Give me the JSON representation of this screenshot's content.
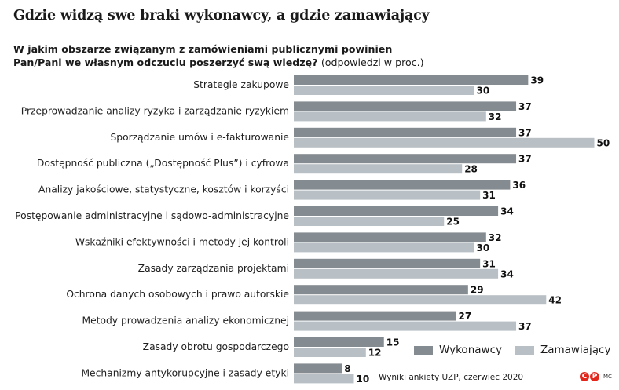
{
  "header": {
    "title": "Gdzie widzą swe braki wykonawcy, a gdzie zamawiający",
    "subtitle_bold_1": "W jakim obszarze związanym z zamówieniami publicznymi powinien",
    "subtitle_bold_2": "Pan/Pani we własnym odczuciu poszerzyć swą wiedzę?",
    "subtitle_note": "(odpowiedzi w proc.)"
  },
  "legend": {
    "series_1": "Wykonawcy",
    "series_2": "Zamawiający"
  },
  "footer": {
    "source": "Wyniki ankiety UZP, czerwiec 2020",
    "logo_c": "C",
    "logo_p": "P",
    "credit": "MC"
  },
  "colors": {
    "series_1": "#858c91",
    "series_2": "#b8c0c5",
    "logo": "#e3271d"
  },
  "chart_data": {
    "type": "bar",
    "orientation": "horizontal",
    "title": "Gdzie widzą swe braki wykonawcy, a gdzie zamawiający",
    "categories": [
      "Strategie zakupowe",
      "Przeprowadzanie analizy ryzyka i zarządzanie ryzykiem",
      "Sporządzanie umów i e-fakturowanie",
      "Dostępność publiczna („Dostępność Plus”) i cyfrowa",
      "Analizy jakościowe, statystyczne, kosztów i korzyści",
      "Postępowanie administracyjne i sądowo-administracyjne",
      "Wskaźniki efektywności i metody jej kontroli",
      "Zasady zarządzania projektami",
      "Ochrona danych osobowych i prawo autorskie",
      "Metody prowadzenia analizy ekonomicznej",
      "Zasady obrotu gospodarczego",
      "Mechanizmy antykorupcyjne i zasady etyki"
    ],
    "series": [
      {
        "name": "Wykonawcy",
        "values": [
          39,
          37,
          37,
          37,
          36,
          34,
          32,
          31,
          29,
          27,
          15,
          8
        ]
      },
      {
        "name": "Zamawiający",
        "values": [
          30,
          32,
          50,
          28,
          31,
          25,
          30,
          34,
          42,
          37,
          12,
          10
        ]
      }
    ],
    "xlim": [
      0,
      50
    ],
    "grid": false,
    "legend": "bottom-right"
  }
}
